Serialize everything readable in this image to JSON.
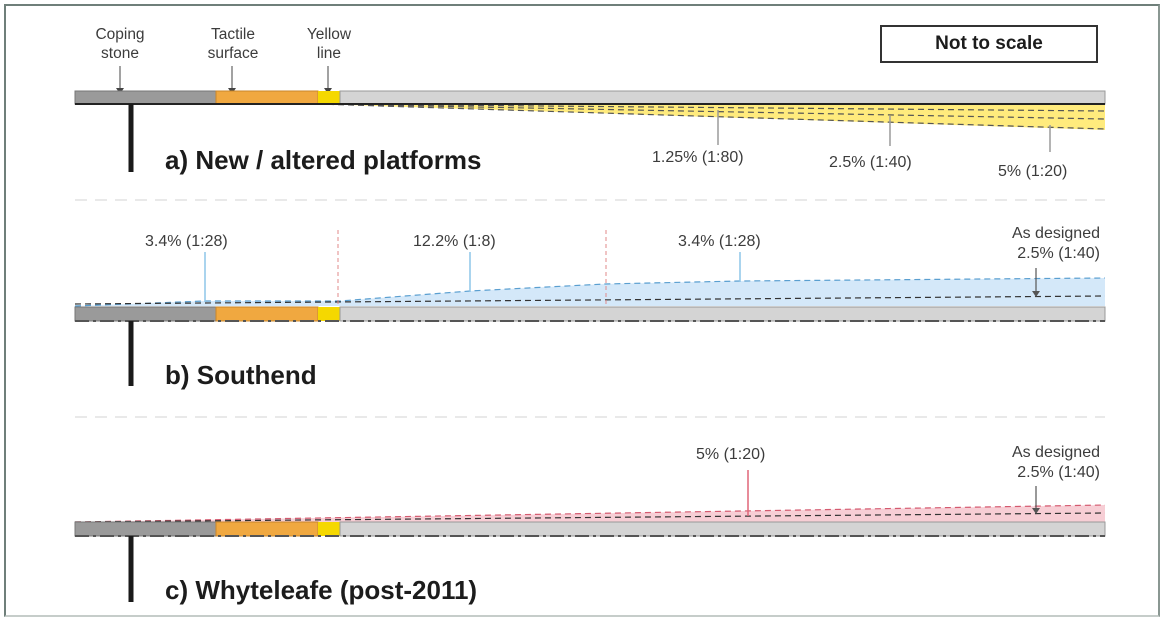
{
  "legend": {
    "coping": "Coping\nstone",
    "tactile": "Tactile\nsurface",
    "yellow": "Yellow\nline"
  },
  "scale_note": "Not to scale",
  "panels": [
    {
      "title": "a) New / altered platforms",
      "fill": "#ffe866",
      "annotations": [
        "1.25% (1:80)",
        "2.5% (1:40)",
        "5% (1:20)"
      ]
    },
    {
      "title": "b) Southend",
      "fill": "#cfe6f8",
      "annotations": [
        "3.4% (1:28)",
        "12.2% (1:8)",
        "3.4% (1:28)",
        "As designed\n2.5% (1:40)"
      ]
    },
    {
      "title": "c) Whyteleafe (post-2011)",
      "fill": "#f7cbd3",
      "annotations": [
        "5% (1:20)",
        "As designed\n2.5% (1:40)"
      ]
    }
  ],
  "colors": {
    "coping": "#9a9a9a",
    "tactile": "#f0a840",
    "yellow_line": "#f5d800",
    "platform": "#d4d4d4",
    "edge": "#1a1a1a",
    "leader_a": "#9a9a9a",
    "leader_b": "#8ec6e8",
    "leader_c": "#e06678"
  }
}
